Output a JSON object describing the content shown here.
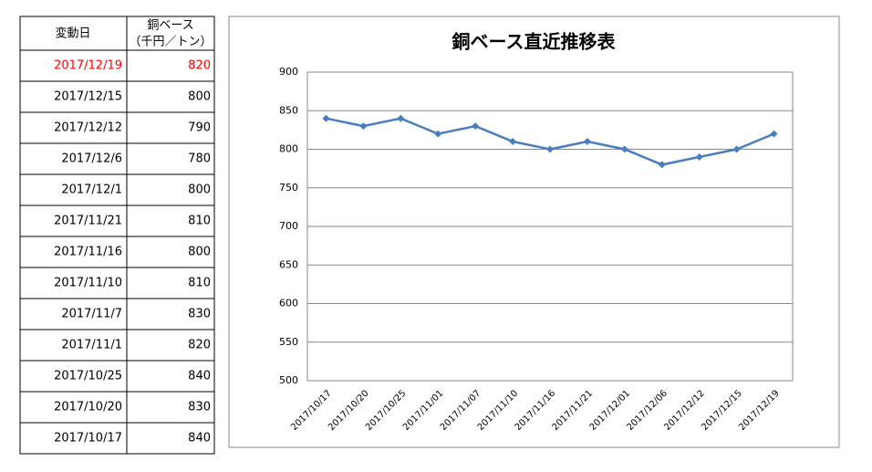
{
  "table": {
    "header": {
      "date": "変動日",
      "value_lines": [
        "銅ベース",
        "（千円／トン）"
      ]
    },
    "highlight_row": 0,
    "highlight_color": "#ff0000",
    "rows": [
      [
        "2017/12/19",
        820
      ],
      [
        "2017/12/15",
        800
      ],
      [
        "2017/12/12",
        790
      ],
      [
        "2017/12/6",
        780
      ],
      [
        "2017/12/1",
        800
      ],
      [
        "2017/11/21",
        810
      ],
      [
        "2017/11/16",
        800
      ],
      [
        "2017/11/10",
        810
      ],
      [
        "2017/11/7",
        830
      ],
      [
        "2017/11/1",
        820
      ],
      [
        "2017/10/25",
        840
      ],
      [
        "2017/10/20",
        830
      ],
      [
        "2017/10/17",
        840
      ]
    ]
  },
  "chart_data": {
    "type": "line",
    "title": "銅ベース直近推移表",
    "categories": [
      "2017/10/17",
      "2017/10/20",
      "2017/10/25",
      "2017/11/01",
      "2017/11/07",
      "2017/11/10",
      "2017/11/16",
      "2017/11/21",
      "2017/12/01",
      "2017/12/06",
      "2017/12/12",
      "2017/12/15",
      "2017/12/19"
    ],
    "values": [
      840,
      830,
      840,
      820,
      830,
      810,
      800,
      810,
      800,
      780,
      790,
      800,
      820
    ],
    "color": "#4a7ebb",
    "ylim": [
      500,
      900
    ],
    "yticks": [
      500,
      550,
      600,
      650,
      700,
      750,
      800,
      850,
      900
    ],
    "grid": true
  }
}
